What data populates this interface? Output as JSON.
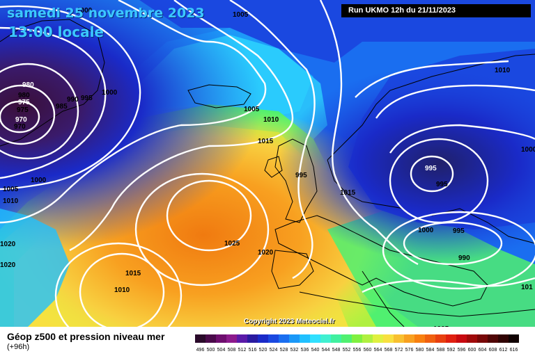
{
  "header": {
    "date": "samedi 25 novembre 2023",
    "time": "13:00 locale",
    "run": "Run UKMO 12h du 21/11/2023"
  },
  "footer": {
    "title": "Géop z500 et pression niveau mer",
    "lead": "(+96h)",
    "copyright": "Copyright 2023 Meteociel.fr"
  },
  "isobar_labels": [
    "1000",
    "1005",
    "980",
    "975",
    "970",
    "985",
    "990",
    "995",
    "1000",
    "1005",
    "1010",
    "1000",
    "1005",
    "1010",
    "1015",
    "1015",
    "1025",
    "1020",
    "1015",
    "1010",
    "1010",
    "995",
    "995",
    "1000",
    "995",
    "990",
    "1005",
    "1000",
    "1020",
    "1020",
    "101"
  ],
  "scale_labels": [
    "496",
    "500",
    "504",
    "508",
    "512",
    "516",
    "520",
    "524",
    "528",
    "532",
    "536",
    "540",
    "544",
    "548",
    "552",
    "556",
    "560",
    "564",
    "568",
    "572",
    "576",
    "580",
    "584",
    "588",
    "592",
    "596",
    "600",
    "604",
    "608",
    "612",
    "616"
  ],
  "scale_colors": [
    "#2a0a2a",
    "#4a0a4a",
    "#6e0e6e",
    "#8c1a8c",
    "#5a1aa8",
    "#2a1aa0",
    "#1a2ac8",
    "#1a48e0",
    "#1a6ef0",
    "#1a98f8",
    "#20c0ff",
    "#30e0ff",
    "#40f0d0",
    "#40f0a0",
    "#50f070",
    "#80f040",
    "#b0f040",
    "#e0f040",
    "#f8e040",
    "#f8c030",
    "#f8a020",
    "#f88010",
    "#f06010",
    "#e84010",
    "#e02010",
    "#c80a10",
    "#a00a0a",
    "#780808",
    "#500606",
    "#300404",
    "#100202"
  ],
  "colors": {
    "low_core": "#3a0f3a",
    "high_core": "#f07a10",
    "isobar": "#ffffff"
  }
}
